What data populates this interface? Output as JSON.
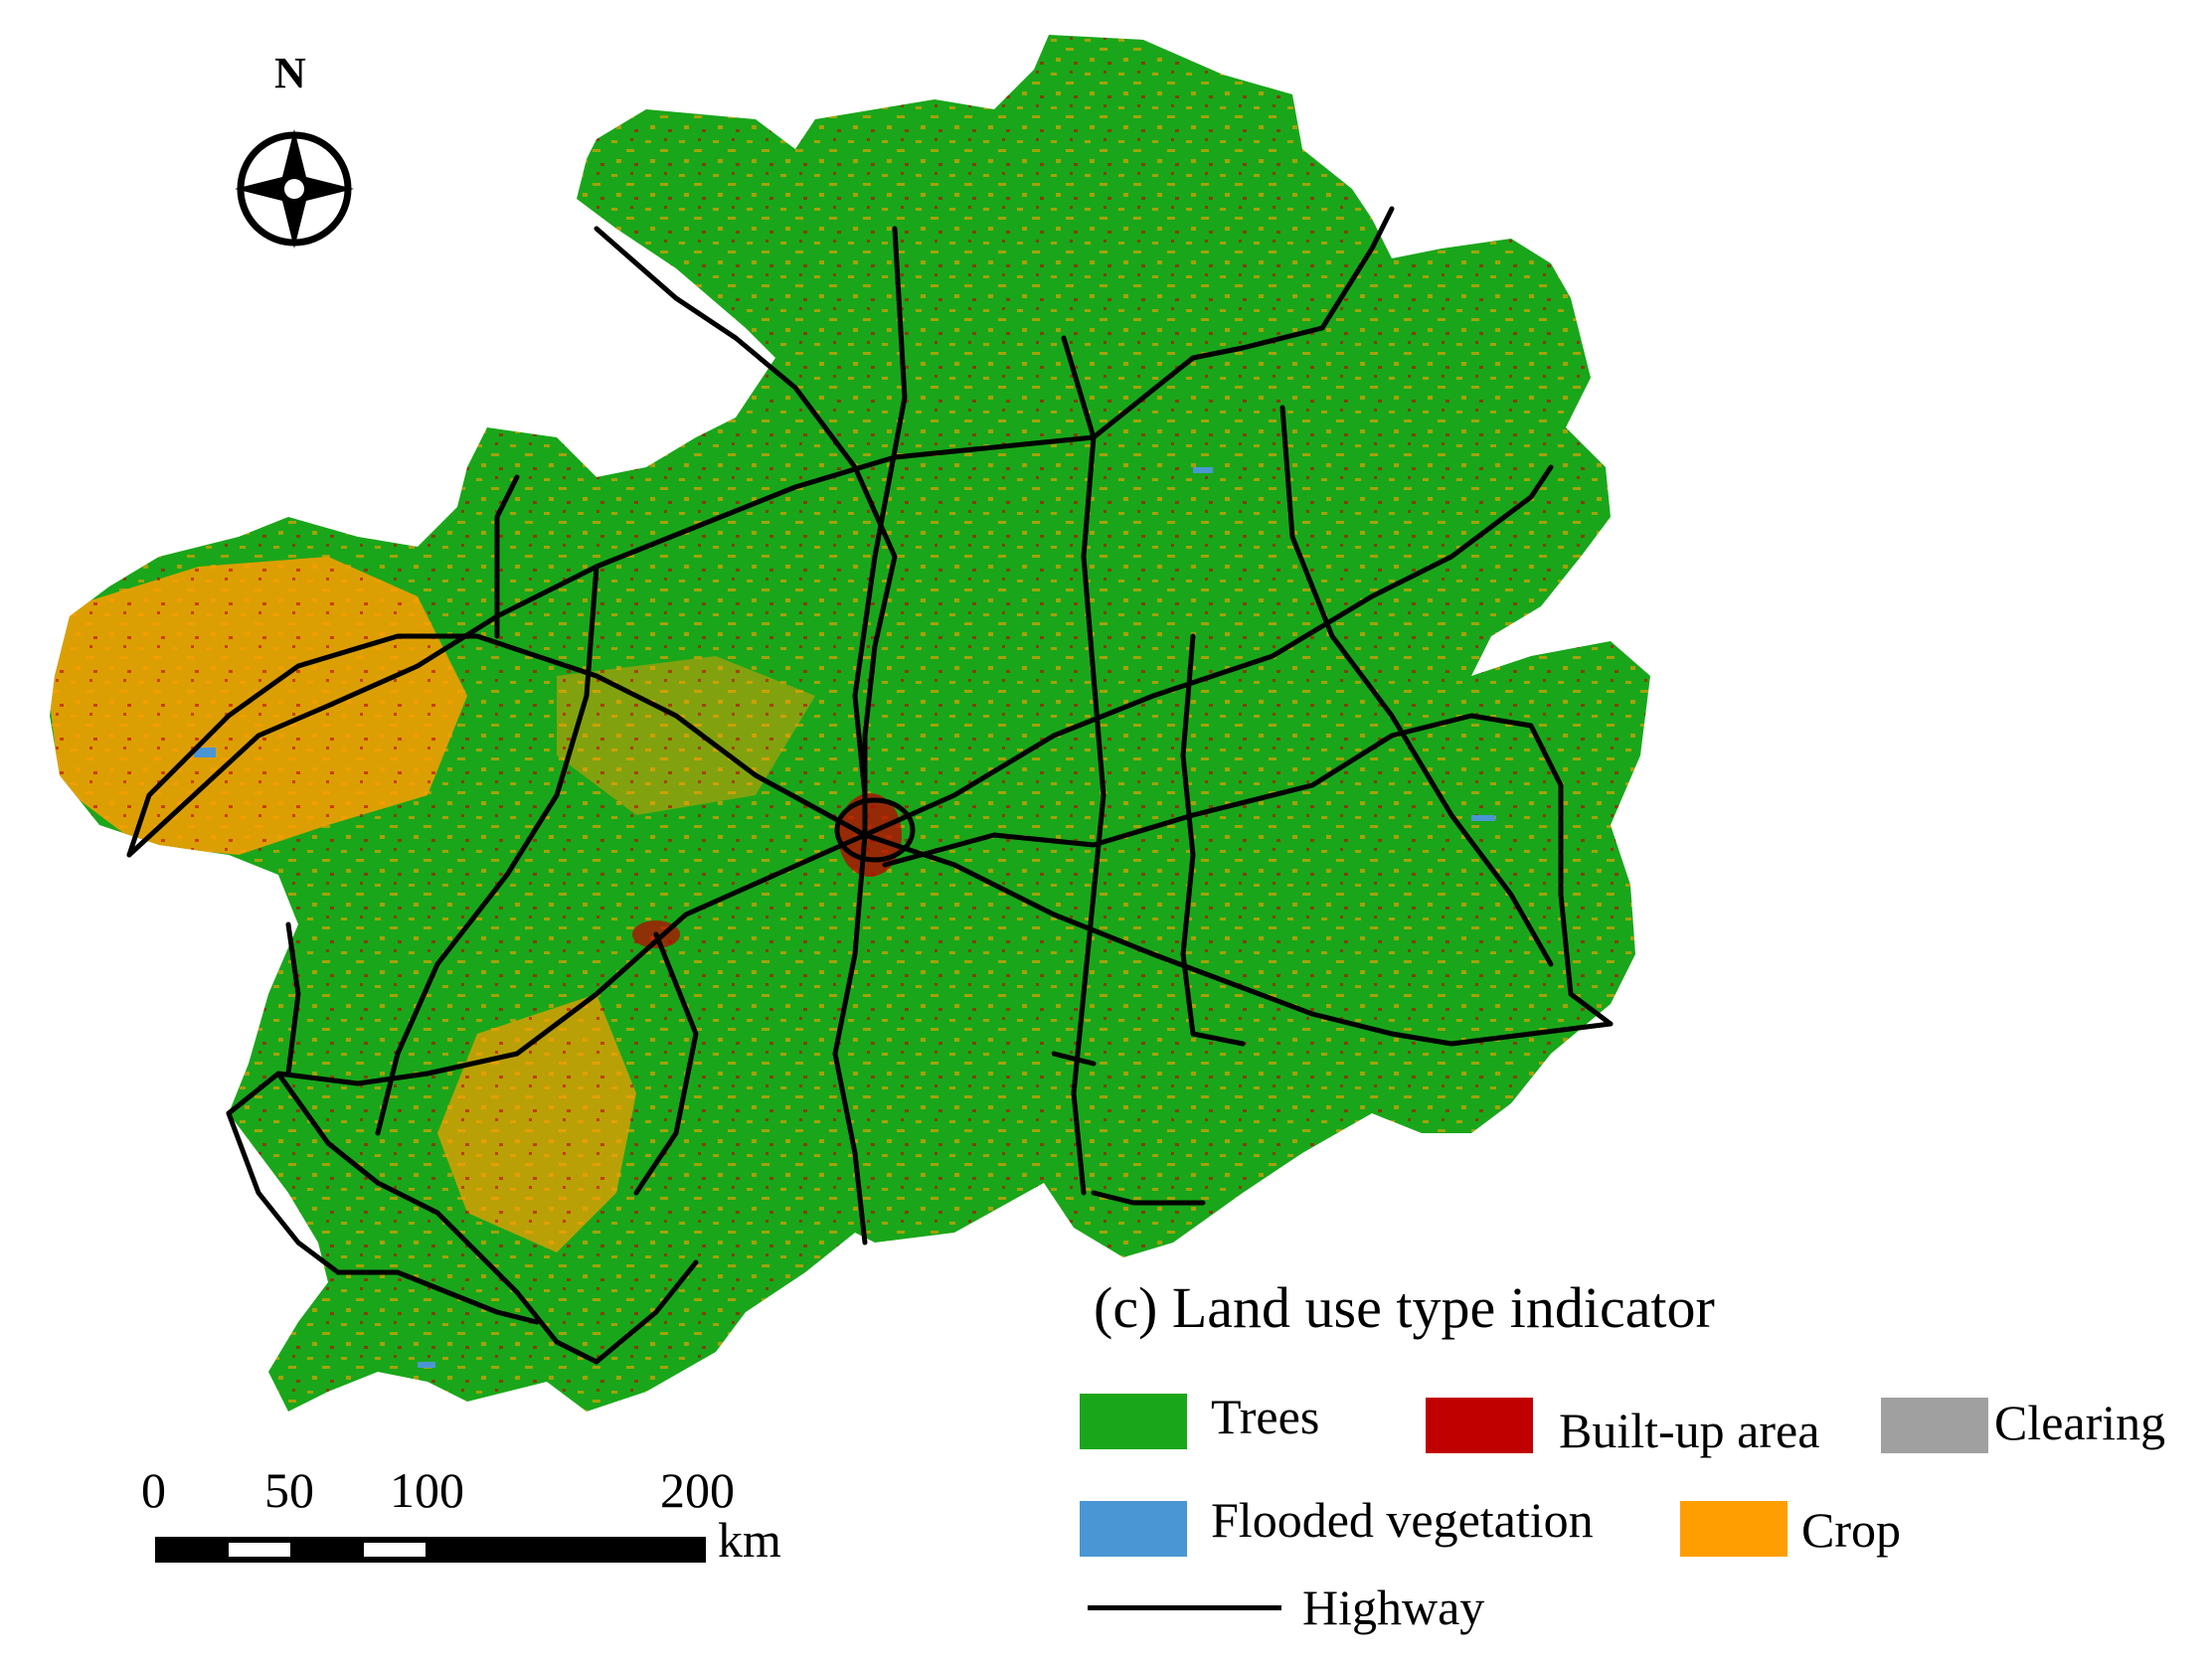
{
  "colors": {
    "trees": "#1aa61a",
    "built_up": "#c00000",
    "clearing": "#a0a0a0",
    "flooded": "#4a96d4",
    "crop": "#ff9e00",
    "highway": "#000000"
  },
  "north": {
    "label": "N",
    "icon": "compass-rose-icon"
  },
  "legend": {
    "title": "(c) Land use type indicator",
    "items": [
      {
        "label": "Trees",
        "color": "#1aa61a"
      },
      {
        "label": "Built-up area",
        "color": "#c00000"
      },
      {
        "label": "Clearing",
        "color": "#a0a0a0"
      },
      {
        "label": "Flooded vegetation",
        "color": "#4a96d4"
      },
      {
        "label": "Crop",
        "color": "#ff9e00"
      }
    ],
    "highway_label": "Highway"
  },
  "scalebar": {
    "ticks": [
      "0",
      "50",
      "100",
      "200"
    ],
    "unit": "km"
  }
}
